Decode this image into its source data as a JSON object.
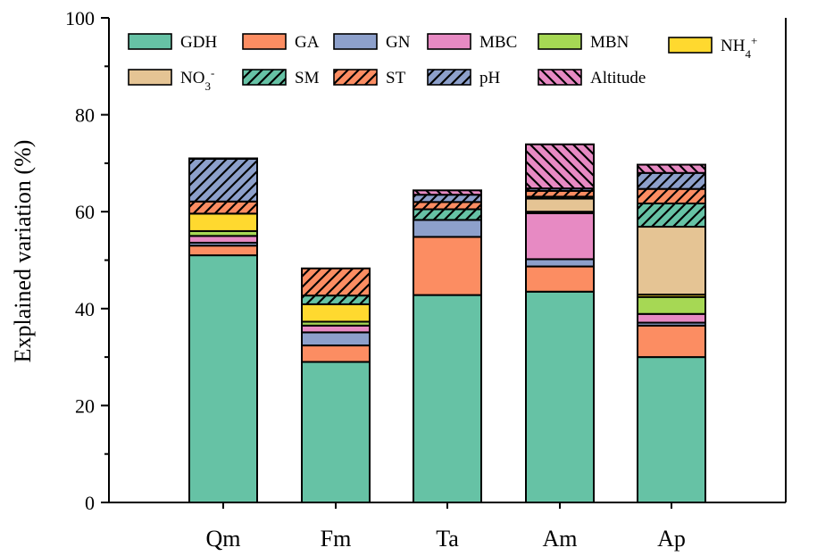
{
  "chart_data": {
    "type": "bar",
    "stacked": true,
    "title": "",
    "xlabel": "",
    "ylabel": "Explained variation (%)",
    "ylim": [
      0,
      100
    ],
    "yticks": [
      0,
      20,
      40,
      60,
      80,
      100
    ],
    "categories": [
      "Qm",
      "Fm",
      "Ta",
      "Am",
      "Ap"
    ],
    "legend_position": "top",
    "series": [
      {
        "name": "GDH",
        "label_parts": [
          {
            "t": "GDH"
          }
        ],
        "color": "#66c2a5",
        "hatch": "none",
        "values": [
          51.0,
          29.0,
          42.8,
          43.5,
          30.0
        ]
      },
      {
        "name": "GA",
        "label_parts": [
          {
            "t": "GA"
          }
        ],
        "color": "#fc8d62",
        "hatch": "none",
        "values": [
          2.0,
          3.4,
          12.0,
          5.2,
          6.5
        ]
      },
      {
        "name": "GN",
        "label_parts": [
          {
            "t": "GN"
          }
        ],
        "color": "#8da0cb",
        "hatch": "none",
        "values": [
          0.6,
          2.7,
          3.5,
          1.5,
          0.6
        ]
      },
      {
        "name": "MBC",
        "label_parts": [
          {
            "t": "MBC"
          }
        ],
        "color": "#e78ac3",
        "hatch": "none",
        "values": [
          1.4,
          1.4,
          0,
          9.5,
          1.8
        ]
      },
      {
        "name": "MBN",
        "label_parts": [
          {
            "t": "MBN"
          }
        ],
        "color": "#a6d854",
        "hatch": "none",
        "values": [
          1.0,
          0.8,
          0,
          0,
          3.5
        ]
      },
      {
        "name": "NH4+",
        "label_parts": [
          {
            "t": "NH"
          },
          {
            "t": "4",
            "sub": true
          },
          {
            "t": "+",
            "sup": true
          }
        ],
        "color": "#ffd92f",
        "hatch": "none",
        "values": [
          3.6,
          3.6,
          0,
          0.3,
          0.5
        ]
      },
      {
        "name": "NO3-",
        "label_parts": [
          {
            "t": "NO"
          },
          {
            "t": "3",
            "sub": true
          },
          {
            "t": "-",
            "sup": true
          }
        ],
        "color": "#e5c494",
        "hatch": "none",
        "values": [
          0,
          0,
          0,
          2.7,
          14.0
        ]
      },
      {
        "name": "SM",
        "label_parts": [
          {
            "t": "SM"
          }
        ],
        "color": "#66c2a5",
        "hatch": "diag",
        "values": [
          0,
          1.8,
          2.2,
          0.4,
          4.8
        ]
      },
      {
        "name": "ST",
        "label_parts": [
          {
            "t": "ST"
          }
        ],
        "color": "#fc8d62",
        "hatch": "diag",
        "values": [
          2.5,
          5.6,
          1.5,
          1.2,
          3.0
        ]
      },
      {
        "name": "pH",
        "label_parts": [
          {
            "t": "pH"
          }
        ],
        "color": "#8da0cb",
        "hatch": "diag",
        "values": [
          8.8,
          0,
          1.5,
          0.5,
          3.3
        ]
      },
      {
        "name": "Altitude",
        "label_parts": [
          {
            "t": "Altitude"
          }
        ],
        "color": "#e78ac3",
        "hatch": "antidiag",
        "values": [
          0.1,
          0,
          0.9,
          9.1,
          1.7
        ]
      }
    ]
  }
}
